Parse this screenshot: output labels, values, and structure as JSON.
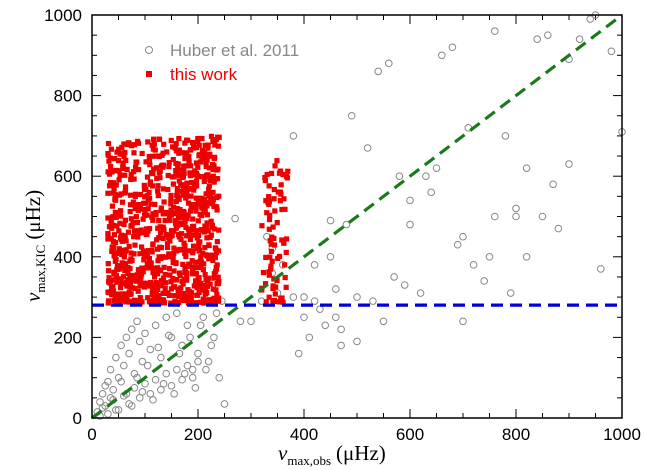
{
  "chart_data": {
    "type": "scatter",
    "xlabel": {
      "symbol": "ν",
      "sub": "max,obs",
      "unit": "(μHz)"
    },
    "ylabel": {
      "symbol": "ν",
      "sub": "max,KIC",
      "unit": "(μHz)"
    },
    "xlim": [
      0,
      1000
    ],
    "ylim": [
      0,
      1000
    ],
    "xticks": [
      "0",
      "200",
      "400",
      "600",
      "800",
      "1000"
    ],
    "yticks": [
      "0",
      "200",
      "400",
      "600",
      "800",
      "1000"
    ],
    "grid": false,
    "legend_position": "top-left",
    "series": [
      {
        "name": "Huber et al. 2011",
        "marker": "open-circle",
        "color": "#888888",
        "points": [
          [
            10,
            15
          ],
          [
            15,
            40
          ],
          [
            20,
            60
          ],
          [
            25,
            30
          ],
          [
            30,
            90
          ],
          [
            35,
            120
          ],
          [
            40,
            70
          ],
          [
            45,
            150
          ],
          [
            50,
            100
          ],
          [
            55,
            180
          ],
          [
            60,
            130
          ],
          [
            65,
            200
          ],
          [
            70,
            160
          ],
          [
            75,
            220
          ],
          [
            80,
            110
          ],
          [
            85,
            240
          ],
          [
            90,
            190
          ],
          [
            95,
            140
          ],
          [
            100,
            210
          ],
          [
            110,
            170
          ],
          [
            120,
            230
          ],
          [
            130,
            150
          ],
          [
            140,
            250
          ],
          [
            150,
            200
          ],
          [
            160,
            260
          ],
          [
            170,
            180
          ],
          [
            180,
            230
          ],
          [
            190,
            120
          ],
          [
            200,
            160
          ],
          [
            210,
            250
          ],
          [
            220,
            140
          ],
          [
            230,
            200
          ],
          [
            240,
            100
          ],
          [
            250,
            35
          ],
          [
            20,
            25
          ],
          [
            30,
            10
          ],
          [
            40,
            45
          ],
          [
            50,
            20
          ],
          [
            60,
            55
          ],
          [
            70,
            35
          ],
          [
            80,
            75
          ],
          [
            90,
            50
          ],
          [
            100,
            85
          ],
          [
            110,
            60
          ],
          [
            120,
            95
          ],
          [
            130,
            70
          ],
          [
            140,
            110
          ],
          [
            150,
            80
          ],
          [
            160,
            120
          ],
          [
            170,
            95
          ],
          [
            180,
            130
          ],
          [
            190,
            100
          ],
          [
            200,
            140
          ],
          [
            15,
            5
          ],
          [
            25,
            80
          ],
          [
            35,
            50
          ],
          [
            45,
            20
          ],
          [
            55,
            90
          ],
          [
            65,
            60
          ],
          [
            75,
            30
          ],
          [
            85,
            100
          ],
          [
            95,
            65
          ],
          [
            105,
            130
          ],
          [
            115,
            45
          ],
          [
            125,
            175
          ],
          [
            135,
            85
          ],
          [
            145,
            205
          ],
          [
            155,
            60
          ],
          [
            165,
            160
          ],
          [
            175,
            110
          ],
          [
            185,
            200
          ],
          [
            195,
            75
          ],
          [
            205,
            230
          ],
          [
            215,
            120
          ],
          [
            225,
            180
          ],
          [
            235,
            260
          ],
          [
            245,
            290
          ],
          [
            300,
            240
          ],
          [
            320,
            290
          ],
          [
            340,
            360
          ],
          [
            360,
            380
          ],
          [
            380,
            700
          ],
          [
            390,
            160
          ],
          [
            400,
            250
          ],
          [
            420,
            290
          ],
          [
            430,
            270
          ],
          [
            440,
            230
          ],
          [
            450,
            400
          ],
          [
            460,
            320
          ],
          [
            470,
            220
          ],
          [
            480,
            480
          ],
          [
            490,
            750
          ],
          [
            500,
            190
          ],
          [
            520,
            670
          ],
          [
            540,
            860
          ],
          [
            560,
            880
          ],
          [
            570,
            350
          ],
          [
            580,
            600
          ],
          [
            600,
            540
          ],
          [
            620,
            310
          ],
          [
            640,
            560
          ],
          [
            660,
            900
          ],
          [
            680,
            920
          ],
          [
            700,
            240
          ],
          [
            710,
            720
          ],
          [
            720,
            380
          ],
          [
            740,
            340
          ],
          [
            760,
            960
          ],
          [
            780,
            700
          ],
          [
            790,
            310
          ],
          [
            800,
            520
          ],
          [
            820,
            620
          ],
          [
            840,
            940
          ],
          [
            860,
            950
          ],
          [
            870,
            580
          ],
          [
            880,
            470
          ],
          [
            900,
            890
          ],
          [
            920,
            940
          ],
          [
            940,
            990
          ],
          [
            960,
            370
          ],
          [
            980,
            910
          ],
          [
            1000,
            710
          ],
          [
            400,
            300
          ],
          [
            420,
            380
          ],
          [
            500,
            300
          ],
          [
            550,
            240
          ],
          [
            600,
            480
          ],
          [
            650,
            620
          ],
          [
            700,
            450
          ],
          [
            750,
            400
          ],
          [
            800,
            500
          ],
          [
            850,
            500
          ],
          [
            900,
            630
          ],
          [
            950,
            1000
          ],
          [
            820,
            400
          ],
          [
            760,
            500
          ],
          [
            690,
            430
          ],
          [
            630,
            600
          ],
          [
            590,
            330
          ],
          [
            530,
            290
          ],
          [
            470,
            180
          ],
          [
            410,
            200
          ],
          [
            350,
            310
          ],
          [
            280,
            240
          ],
          [
            270,
            495
          ],
          [
            330,
            450
          ],
          [
            340,
            420
          ],
          [
            380,
            300
          ],
          [
            450,
            490
          ],
          [
            460,
            250
          ]
        ]
      },
      {
        "name": "this work",
        "marker": "filled-square",
        "color": "#ee0000",
        "clusters": [
          {
            "x_range": [
              30,
              240
            ],
            "y_range": [
              285,
              700
            ],
            "count": 900
          },
          {
            "x_range": [
              320,
              370
            ],
            "y_range": [
              285,
              650
            ],
            "count": 80
          }
        ]
      }
    ],
    "reference_lines": [
      {
        "kind": "1:1",
        "color": "#1a7a1a",
        "style": "dashed",
        "from": [
          0,
          0
        ],
        "to": [
          1000,
          1000
        ]
      },
      {
        "kind": "horizontal",
        "color": "#0000dd",
        "style": "dashed",
        "y": 280
      }
    ]
  }
}
